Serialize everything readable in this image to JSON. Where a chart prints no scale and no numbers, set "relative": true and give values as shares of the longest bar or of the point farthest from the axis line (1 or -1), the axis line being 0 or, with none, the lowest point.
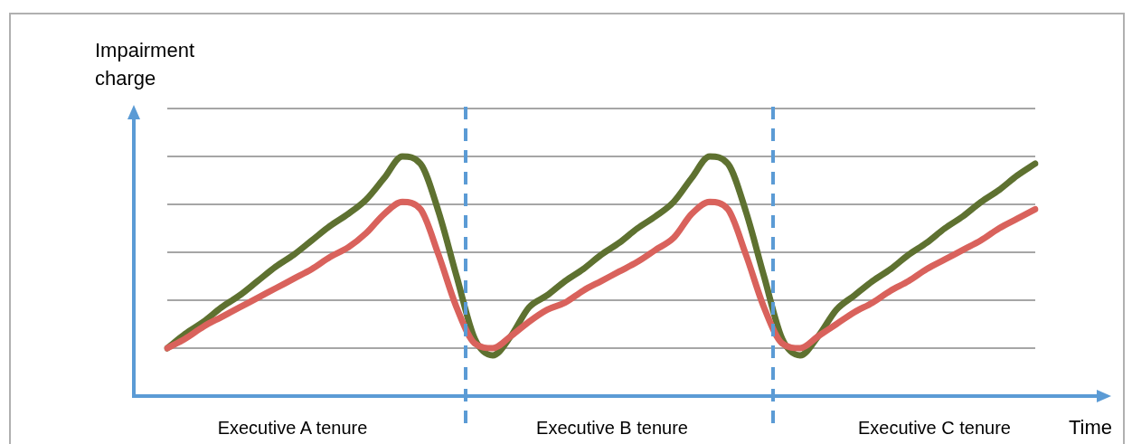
{
  "chart_data": {
    "type": "line",
    "relative": true,
    "ylabel": "Impairment charge",
    "xlabel": "Time",
    "grid": "y",
    "legend": false,
    "marker": "none",
    "line_style": "solid",
    "categories": [
      null,
      null,
      null,
      null,
      null,
      null,
      null,
      null,
      null,
      null,
      null,
      null,
      null,
      null,
      null,
      null,
      null,
      null,
      null,
      null,
      null,
      null,
      null,
      null,
      null,
      null,
      null,
      null,
      null,
      null,
      null,
      null,
      null,
      null,
      null,
      null,
      null,
      null,
      null,
      null,
      null,
      null,
      null,
      null,
      null,
      null,
      null,
      null,
      null
    ],
    "series": [
      {
        "color": "#d9625c",
        "values": [
          0.2,
          0.24,
          0.29,
          0.33,
          0.37,
          0.41,
          0.45,
          0.49,
          0.53,
          0.58,
          0.62,
          0.68,
          0.76,
          0.81,
          0.78,
          0.59,
          0.37,
          0.22,
          0.2,
          0.25,
          0.31,
          0.36,
          0.39,
          0.44,
          0.48,
          0.52,
          0.56,
          0.61,
          0.66,
          0.76,
          0.81,
          0.78,
          0.59,
          0.37,
          0.22,
          0.2,
          0.25,
          0.3,
          0.35,
          0.39,
          0.44,
          0.48,
          0.53,
          0.57,
          0.61,
          0.65,
          0.7,
          0.74,
          0.78
        ]
      },
      {
        "color": "#5e7130",
        "values": [
          0.2,
          0.26,
          0.31,
          0.37,
          0.42,
          0.48,
          0.54,
          0.59,
          0.65,
          0.71,
          0.76,
          0.82,
          0.91,
          1.0,
          0.97,
          0.77,
          0.5,
          0.24,
          0.17,
          0.25,
          0.37,
          0.42,
          0.48,
          0.53,
          0.59,
          0.64,
          0.7,
          0.75,
          0.81,
          0.91,
          1.0,
          0.97,
          0.77,
          0.5,
          0.24,
          0.17,
          0.25,
          0.36,
          0.42,
          0.48,
          0.53,
          0.59,
          0.64,
          0.7,
          0.75,
          0.81,
          0.86,
          0.92,
          0.97
        ]
      }
    ],
    "annotations": [
      "Executive A tenure",
      "Executive B tenure",
      "Executive C tenure"
    ]
  }
}
